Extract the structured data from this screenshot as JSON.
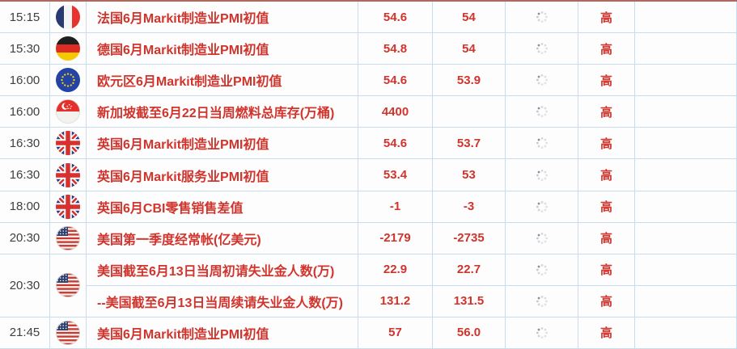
{
  "colors": {
    "accent_red": "#d0342c",
    "grid_line": "#c9dcee",
    "top_line": "#ad695d",
    "time_text": "#404040"
  },
  "rows": [
    {
      "time": "15:15",
      "country": "france",
      "subrows": [
        {
          "event": "法国6月Markit制造业PMI初值",
          "previous": "54.6",
          "forecast": "54",
          "importance": "高"
        }
      ]
    },
    {
      "time": "15:30",
      "country": "germany",
      "subrows": [
        {
          "event": "德国6月Markit制造业PMI初值",
          "previous": "54.8",
          "forecast": "54",
          "importance": "高"
        }
      ]
    },
    {
      "time": "16:00",
      "country": "eurozone",
      "subrows": [
        {
          "event": "欧元区6月Markit制造业PMI初值",
          "previous": "54.6",
          "forecast": "53.9",
          "importance": "高"
        }
      ]
    },
    {
      "time": "16:00",
      "country": "singapore",
      "subrows": [
        {
          "event": "新加坡截至6月22日当周燃料总库存(万桶)",
          "previous": "4400",
          "forecast": "",
          "importance": "高"
        }
      ]
    },
    {
      "time": "16:30",
      "country": "uk",
      "subrows": [
        {
          "event": "英国6月Markit制造业PMI初值",
          "previous": "54.6",
          "forecast": "53.7",
          "importance": "高"
        }
      ]
    },
    {
      "time": "16:30",
      "country": "uk",
      "subrows": [
        {
          "event": "英国6月Markit服务业PMI初值",
          "previous": "53.4",
          "forecast": "53",
          "importance": "高"
        }
      ]
    },
    {
      "time": "18:00",
      "country": "uk",
      "subrows": [
        {
          "event": "英国6月CBI零售销售差值",
          "previous": "-1",
          "forecast": "-3",
          "importance": "高"
        }
      ]
    },
    {
      "time": "20:30",
      "country": "us",
      "subrows": [
        {
          "event": "美国第一季度经常帐(亿美元)",
          "previous": "-2179",
          "forecast": "-2735",
          "importance": "高"
        }
      ]
    },
    {
      "time": "20:30",
      "country": "us",
      "subrows": [
        {
          "event": "美国截至6月13日当周初请失业金人数(万)",
          "previous": "22.9",
          "forecast": "22.7",
          "importance": "高"
        },
        {
          "event": "--美国截至6月13日当周续请失业金人数(万)",
          "previous": "131.2",
          "forecast": "131.5",
          "importance": "高"
        }
      ]
    },
    {
      "time": "21:45",
      "country": "us",
      "subrows": [
        {
          "event": "美国6月Markit制造业PMI初值",
          "previous": "57",
          "forecast": "56.0",
          "importance": "高"
        }
      ]
    }
  ]
}
